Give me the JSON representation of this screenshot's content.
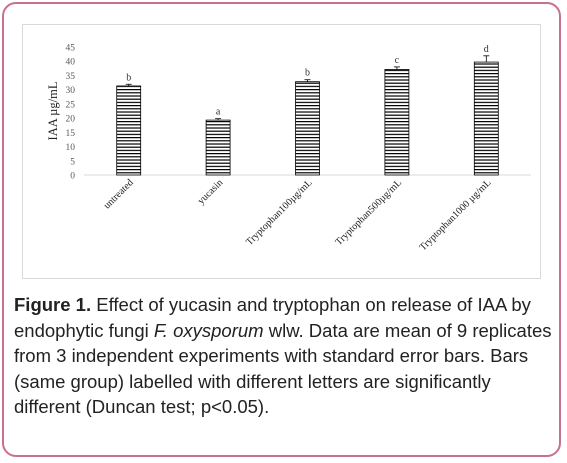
{
  "chart_data": {
    "type": "bar",
    "categories": [
      "untreated",
      "yucasin",
      "Tryptophan100µg/mL",
      "Tryptophan500µg/mL",
      "Tryptophan1000 µg/mL"
    ],
    "values": [
      31.3,
      19.3,
      32.8,
      37.1,
      39.7
    ],
    "errors": [
      0.6,
      0.5,
      0.7,
      0.9,
      2.2
    ],
    "letters": [
      "b",
      "a",
      "b",
      "c",
      "d"
    ],
    "ylabel": "IAA µg/mL",
    "xlabel": "",
    "ylim": [
      0,
      45
    ],
    "yticks": [
      0,
      5,
      10,
      15,
      20,
      25,
      30,
      35,
      40,
      45
    ],
    "grid": false,
    "bar_fill": "horizontal-stripes",
    "colors": {
      "bar_stroke": "#000000",
      "axis": "#d9d9d9",
      "tick_text": "#595959"
    }
  },
  "caption": {
    "figure_label": "Figure 1.",
    "part1": " Effect of yucasin and tryptophan on release of IAA by endophytic fungi ",
    "species": "F. oxysporum",
    "part2": " wlw. Data are mean of 9 replicates from 3 independent experiments with standard error bars. Bars (same group) labelled with different letters are significantly different (Duncan test; p<0.05)."
  },
  "colors": {
    "frame_border": "#c6728a"
  }
}
